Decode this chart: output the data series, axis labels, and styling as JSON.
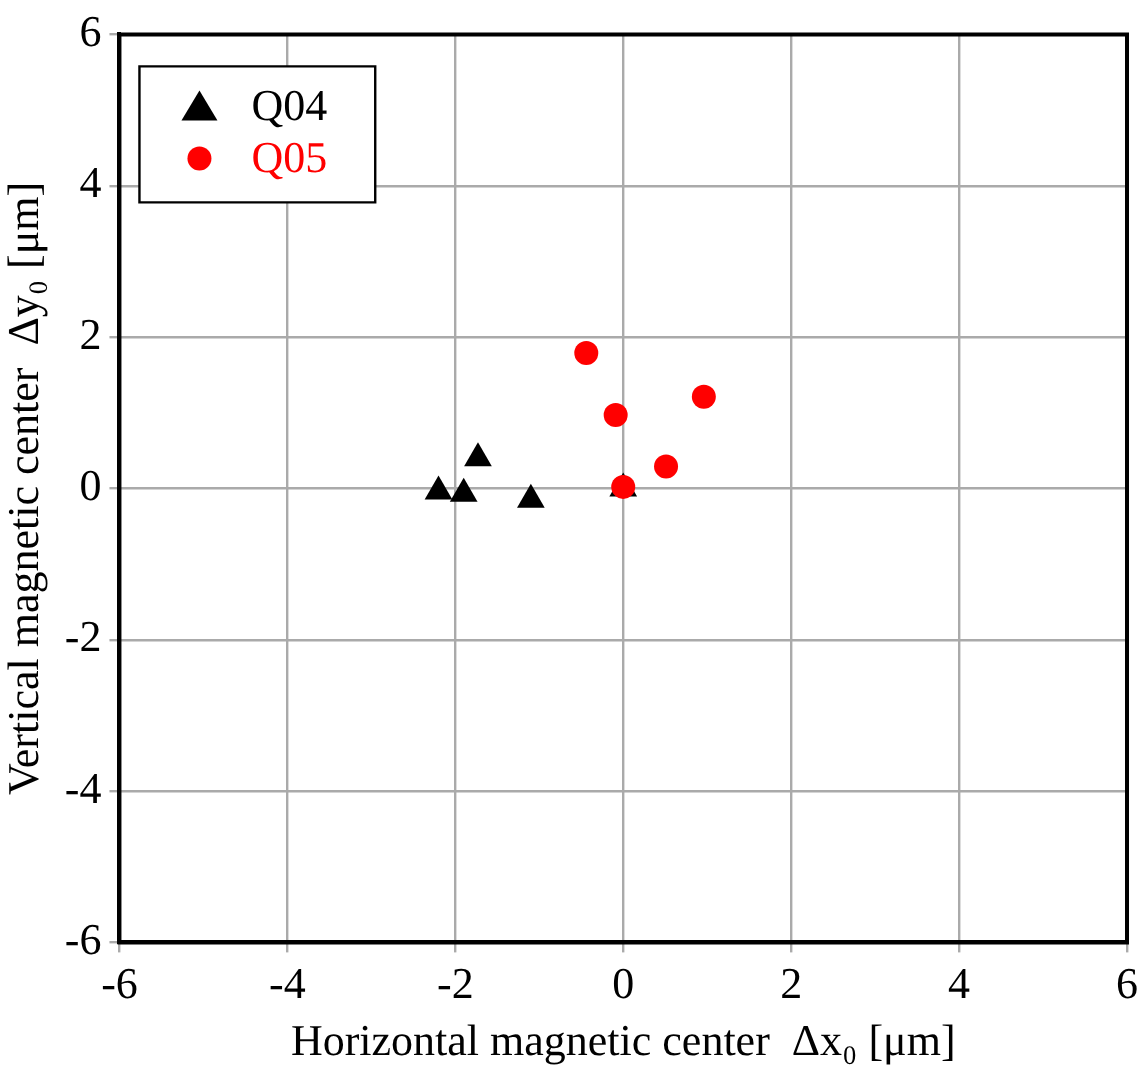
{
  "chart_data": {
    "type": "scatter",
    "xlabel": "Horizontal magnetic center  Δx₀ [μm]",
    "ylabel": "Vertical magnetic center  Δy₀ [μm]",
    "xlim": [
      -6,
      6
    ],
    "xticks": [
      -6,
      -4,
      -2,
      0,
      2,
      4,
      6
    ],
    "ylim": [
      -6,
      6
    ],
    "yticks": [
      -6,
      -4,
      -2,
      0,
      2,
      4,
      6
    ],
    "grid": true,
    "legend": "top left",
    "series": [
      {
        "name": "Q04",
        "color": "#000000",
        "marker": "triangle",
        "x": [
          -2.2,
          -1.9,
          -1.73,
          -1.1,
          0.0
        ],
        "values": [
          -0.04,
          -0.07,
          0.4,
          -0.15,
          0.0
        ]
      },
      {
        "name": "Q05",
        "color": "#ff0000",
        "marker": "circle",
        "x": [
          -0.44,
          -0.09,
          0.96,
          0.51,
          0.0
        ],
        "values": [
          1.79,
          0.97,
          1.21,
          0.29,
          0.02
        ]
      }
    ]
  }
}
